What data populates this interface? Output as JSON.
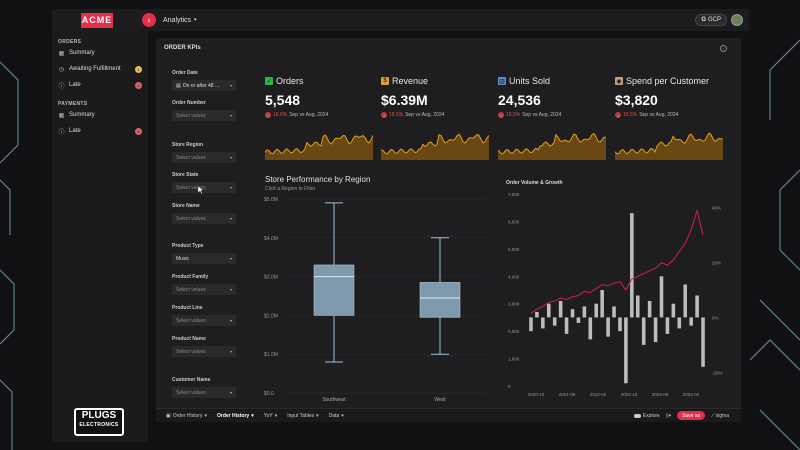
{
  "topbar": {
    "logo_text": "ACME",
    "app_menu_label": "Analytics",
    "cloud_label": "GCP"
  },
  "sidebar": {
    "orders_section": "ORDERS",
    "orders_items": [
      {
        "label": "Summary",
        "icon": "grid-icon"
      },
      {
        "label": "Awaiting Fulfillment",
        "icon": "clock-icon",
        "badge": "1",
        "badge_color": "#e6c24a"
      },
      {
        "label": "Late",
        "icon": "alert-icon",
        "badge": "2",
        "badge_color": "#e0606a"
      }
    ],
    "payments_section": "PAYMENTS",
    "payments_items": [
      {
        "label": "Summary",
        "icon": "grid-icon"
      },
      {
        "label": "Late",
        "icon": "alert-icon",
        "badge": "4",
        "badge_color": "#e0606a"
      }
    ],
    "brand_line1": "PLUGS",
    "brand_line2": "ELECTRONICS"
  },
  "main": {
    "title": "ORDER KPIs",
    "filters": [
      {
        "label": "Order Date",
        "value": "On or after 48 ...",
        "filled": true,
        "calendar": true
      },
      {
        "label": "Order Number",
        "value": "Select values"
      },
      {
        "label": "Store Region",
        "value": "Select values"
      },
      {
        "label": "Store State",
        "value": "Select values"
      },
      {
        "label": "Store Name",
        "value": "Select values"
      },
      {
        "label": "Product Type",
        "value": "Music",
        "filled": true
      },
      {
        "label": "Product Family",
        "value": "Select values"
      },
      {
        "label": "Product Line",
        "value": "Select values"
      },
      {
        "label": "Product Name",
        "value": "Select values"
      },
      {
        "label": "Customer Name",
        "value": "Select values"
      }
    ],
    "kpis": [
      {
        "title": "Orders",
        "icon": "check-box-icon",
        "icon_color": "#2fb34a",
        "value": "5,548",
        "pct": "18.6%",
        "compare": "Sep vs Aug, 2024"
      },
      {
        "title": "Revenue",
        "icon": "money-bag-icon",
        "icon_color": "#e0a030",
        "value": "$6.39M",
        "pct": "18.5%",
        "compare": "Sep vs Aug, 2024"
      },
      {
        "title": "Units Sold",
        "icon": "bar-chart-icon",
        "icon_color": "#5a8fd0",
        "value": "24,536",
        "pct": "18.5%",
        "compare": "Sep vs Aug, 2024"
      },
      {
        "title": "Spend per Customer",
        "icon": "jar-icon",
        "icon_color": "#c0a080",
        "value": "$3,820",
        "pct": "16.5%",
        "compare": "Sep vs Aug, 2024"
      }
    ],
    "boxplot_title": "Store Performance by Region",
    "boxplot_subtitle": "Click a Region to Filter",
    "volume_title": "Order Volume & Growth"
  },
  "chart_data": [
    {
      "type": "box",
      "title": "Store Performance by Region",
      "ytick_labels": [
        "$0.0",
        "$1.0M",
        "$2.0M",
        "$3.0M",
        "$4.0M",
        "$5.0M"
      ],
      "ylim": [
        0,
        5000000
      ],
      "categories": [
        "Southwest",
        "West"
      ],
      "boxes": [
        {
          "name": "Southwest",
          "min": 800000,
          "q1": 2000000,
          "median": 3000000,
          "q3": 3300000,
          "max": 4900000
        },
        {
          "name": "West",
          "min": 1000000,
          "q1": 1950000,
          "median": 2450000,
          "q3": 2850000,
          "max": 4000000
        }
      ],
      "color": "#7f99ad"
    },
    {
      "type": "bar+line",
      "title": "Order Volume & Growth",
      "ylim_left": [
        0,
        7000
      ],
      "yticks_left": [
        "0",
        "1,000",
        "2,000",
        "3,000",
        "4,000",
        "5,000",
        "6,000",
        "7,000"
      ],
      "ylim_right": [
        -25,
        45
      ],
      "yticks_right": [
        "-20%",
        "0%",
        "20%",
        "40%"
      ],
      "xtick_labels": [
        "2020-10",
        "2021-06",
        "2022-02",
        "2022-10",
        "2023-06",
        "2024-02"
      ],
      "bar_color": "#bdbdbd",
      "line_color": "#d0204a",
      "growth_pct": [
        -5,
        2,
        -4,
        5,
        -3,
        6,
        -6,
        3,
        -2,
        4,
        -8,
        5,
        10,
        -7,
        4,
        -5,
        -24,
        38,
        8,
        -10,
        6,
        -9,
        15,
        -6,
        5,
        -4,
        12,
        -3,
        8,
        -18
      ],
      "volume": [
        2650,
        2800,
        2900,
        3050,
        3100,
        3200,
        3150,
        3250,
        3300,
        3450,
        3400,
        3550,
        3700,
        3650,
        3750,
        3800,
        3500,
        3900,
        4000,
        4100,
        4200,
        4300,
        4500,
        4400,
        4600,
        4900,
        5200,
        5700,
        6400,
        5500
      ]
    }
  ],
  "bottombar": {
    "tabs": [
      {
        "label": "Order History",
        "active": false
      },
      {
        "label": "Order History",
        "active": true
      },
      {
        "label": "YoY",
        "active": false
      },
      {
        "label": "Input Tables",
        "active": false
      },
      {
        "label": "Data",
        "active": false
      }
    ],
    "explore_label": "Explore",
    "save_label": "Save as",
    "sigma_label": "sigma"
  }
}
